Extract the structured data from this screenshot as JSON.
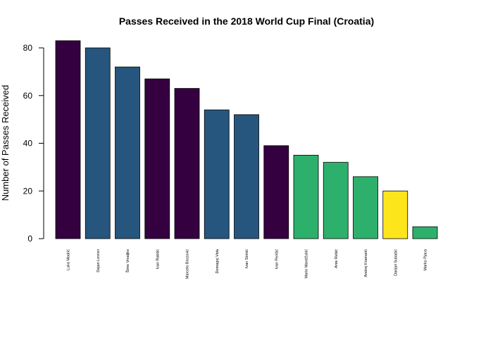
{
  "chart_data": {
    "type": "bar",
    "title": "Passes Received in the 2018 World Cup Final (Croatia)",
    "xlabel": "",
    "ylabel": "Number of Passes Received",
    "ylim": [
      0,
      85
    ],
    "yticks": [
      0,
      20,
      40,
      60,
      80
    ],
    "grid": false,
    "legend": "none",
    "categories": [
      "Luka Modrić",
      "Dejan Lovren",
      "Šime Vrsaljko",
      "Ivan Rakitić",
      "Marcelo Brozović",
      "Domagoj Vida",
      "Ivan Strinić",
      "Ivan Perišić",
      "Mario Mandžukić",
      "Ante Rebić",
      "Andrej Kramarić",
      "Danijel Subašić",
      "Marko Pjaca"
    ],
    "values": [
      83,
      80,
      72,
      67,
      63,
      54,
      52,
      39,
      35,
      32,
      26,
      20,
      5
    ],
    "colors": [
      "#35003F",
      "#26567D",
      "#26567D",
      "#35003F",
      "#35003F",
      "#26567D",
      "#26567D",
      "#35003F",
      "#2DB06B",
      "#2DB06B",
      "#2DB06B",
      "#FDE51C",
      "#2DB06B"
    ]
  }
}
